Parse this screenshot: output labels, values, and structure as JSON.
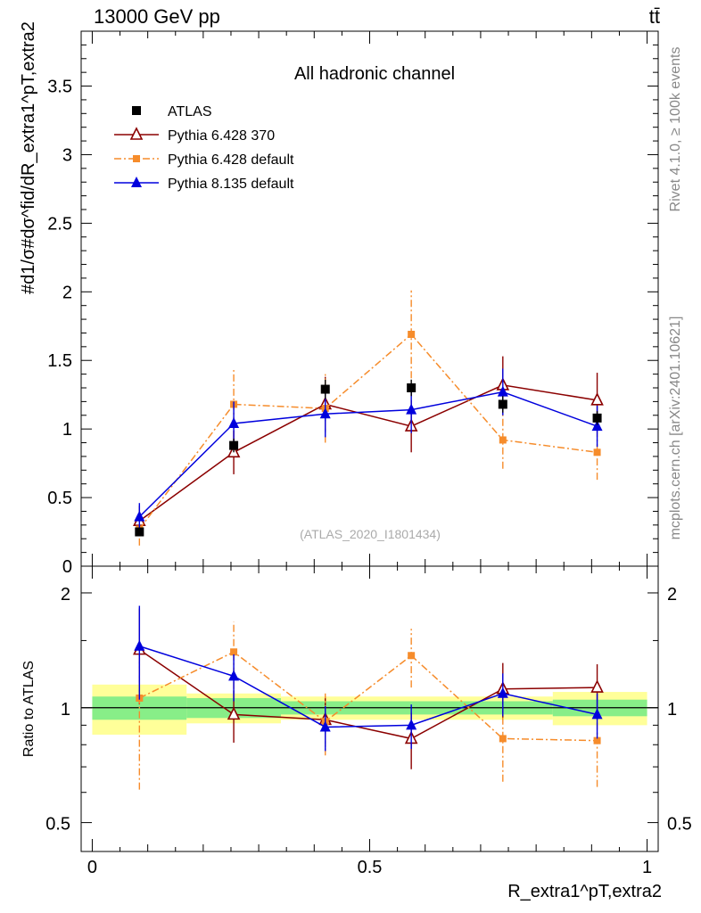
{
  "header": {
    "energy_label": "13000 GeV pp",
    "process_label": "tt̄"
  },
  "side": {
    "rivet_label": "Rivet 4.1.0, ≥ 100k events",
    "source_label": "mcplots.cern.ch [arXiv:2401.10621]"
  },
  "chart_data": [
    {
      "type": "scatter",
      "panel": "main",
      "title": "All hadronic channel",
      "analysis_label": "(ATLAS_2020_I1801434)",
      "ylabel": "#d1/σ#dσ^fid/dR_extra1^pT,extra2",
      "xlim": [
        -0.02,
        1.02
      ],
      "ylim": [
        0,
        3.9
      ],
      "yticks": [
        0,
        0.5,
        1,
        1.5,
        2,
        2.5,
        3,
        3.5
      ],
      "ytick_labels": [
        "0",
        "0.5",
        "1",
        "1.5",
        "2",
        "2.5",
        "3",
        "3.5"
      ],
      "x": [
        0.085,
        0.255,
        0.42,
        0.575,
        0.74,
        0.91
      ],
      "bins": [
        [
          0,
          0.17
        ],
        [
          0.17,
          0.34
        ],
        [
          0.34,
          0.5
        ],
        [
          0.5,
          0.66
        ],
        [
          0.66,
          0.83
        ],
        [
          0.83,
          1.0
        ]
      ],
      "series": [
        {
          "name": "ATLAS",
          "marker": "square",
          "color": "#000000",
          "values": [
            0.25,
            0.88,
            1.29,
            1.3,
            1.18,
            1.08
          ],
          "errors": [
            0.02,
            0.05,
            0.07,
            0.06,
            0.06,
            0.05
          ]
        },
        {
          "name": "Pythia 6.428 370",
          "marker": "triangle-open",
          "color": "#8b0000",
          "line": "solid",
          "values": [
            0.33,
            0.83,
            1.18,
            1.02,
            1.32,
            1.21
          ],
          "errors": [
            0.11,
            0.16,
            0.2,
            0.19,
            0.21,
            0.2
          ]
        },
        {
          "name": "Pythia 6.428 default",
          "marker": "square-small",
          "color": "#f68c2b",
          "line": "dashdot",
          "values": [
            0.27,
            1.18,
            1.15,
            1.69,
            0.92,
            0.83
          ],
          "errors": [
            0.12,
            0.25,
            0.25,
            0.32,
            0.21,
            0.2
          ]
        },
        {
          "name": "Pythia 8.135 default",
          "marker": "triangle",
          "color": "#0000dd",
          "line": "solid",
          "values": [
            0.36,
            1.04,
            1.11,
            1.14,
            1.27,
            1.02
          ],
          "errors": [
            0.1,
            0.16,
            0.17,
            0.17,
            0.17,
            0.15
          ]
        }
      ]
    },
    {
      "type": "scatter",
      "panel": "ratio",
      "ylabel": "Ratio to ATLAS",
      "xlabel": "R_extra1^pT,extra2",
      "ylim": [
        0.42,
        2.35
      ],
      "yscale": "log",
      "yticks": [
        0.5,
        1,
        2
      ],
      "ytick_labels": [
        "0.5",
        "1",
        "2"
      ],
      "xticks": [
        0,
        0.5,
        1
      ],
      "xtick_labels": [
        "0",
        "0.5",
        "1"
      ],
      "reference_line": 1,
      "bands": {
        "green_halfwidth": [
          0.07,
          0.06,
          0.04,
          0.04,
          0.04,
          0.05
        ],
        "yellow_halfwidth": [
          0.15,
          0.09,
          0.07,
          0.07,
          0.07,
          0.1
        ]
      },
      "series": [
        {
          "name": "Pythia 6.428 370",
          "color": "#8b0000",
          "values": [
            1.42,
            0.96,
            0.93,
            0.83,
            1.12,
            1.13
          ],
          "errors": [
            0.4,
            0.15,
            0.14,
            0.14,
            0.19,
            0.17
          ]
        },
        {
          "name": "Pythia 6.428 default",
          "color": "#f68c2b",
          "values": [
            1.06,
            1.4,
            0.92,
            1.37,
            0.83,
            0.82
          ],
          "errors": [
            0.45,
            0.28,
            0.17,
            0.24,
            0.19,
            0.2
          ]
        },
        {
          "name": "Pythia 8.135 default",
          "color": "#0000dd",
          "values": [
            1.45,
            1.21,
            0.89,
            0.9,
            1.09,
            0.96
          ],
          "errors": [
            0.4,
            0.17,
            0.12,
            0.12,
            0.14,
            0.13
          ]
        }
      ]
    }
  ]
}
